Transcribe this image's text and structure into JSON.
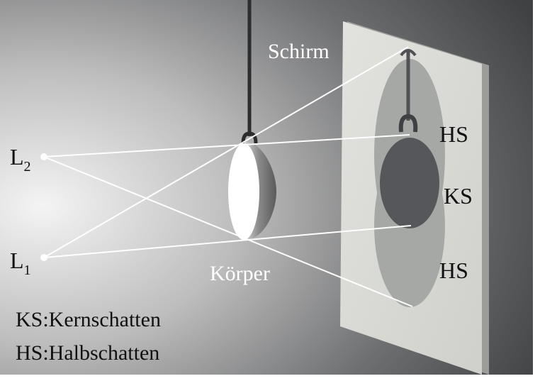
{
  "labels": {
    "screen": "Schirm",
    "body": "Körper",
    "light1_main": "L",
    "light1_sub": "1",
    "light2_main": "L",
    "light2_sub": "2",
    "hs_top": "HS",
    "ks": "KS",
    "hs_bottom": "HS"
  },
  "legend": {
    "ks": "KS:Kernschatten",
    "hs": "HS:Halbschatten"
  },
  "colors": {
    "label_white": "#ffffff",
    "label_dark": "#111111",
    "screen": "#d8d9d4",
    "core_shadow": "#55575a",
    "half_shadow": "#a4a6a3",
    "rays": "#ffffff"
  }
}
